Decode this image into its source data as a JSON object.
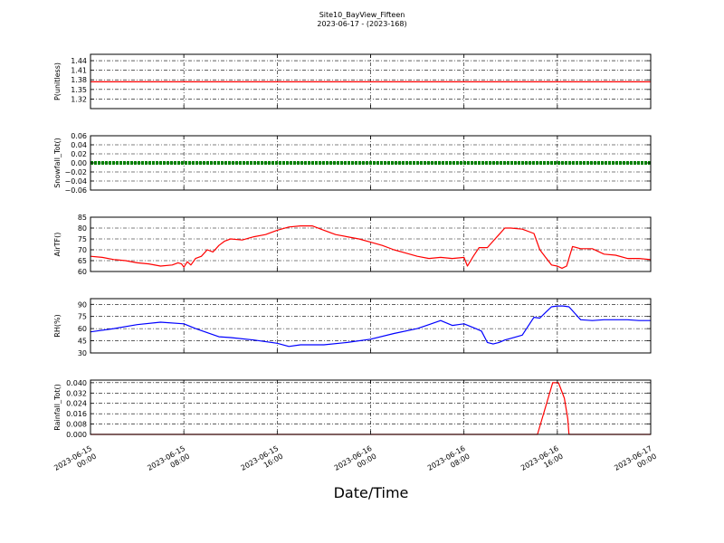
{
  "title_line1": "Site10_BayView_Fifteen",
  "title_line2": "2023-06-17 - (2023-168)",
  "xlabel": "Date/Time",
  "chart_data": {
    "type": "line",
    "title": "Site10_BayView_Fifteen",
    "subtitle": "2023-06-17 - (2023-168)",
    "xlabel": "Date/Time",
    "x_axis": {
      "start": "2023-06-15 00:00",
      "end": "2023-06-17 00:00",
      "tick_hours": [
        0,
        8,
        16,
        24,
        32,
        40,
        48
      ],
      "tick_labels": [
        [
          "2023-06-15",
          "00:00"
        ],
        [
          "2023-06-15",
          "08:00"
        ],
        [
          "2023-06-15",
          "16:00"
        ],
        [
          "2023-06-16",
          "00:00"
        ],
        [
          "2023-06-16",
          "08:00"
        ],
        [
          "2023-06-16",
          "16:00"
        ],
        [
          "2023-06-17",
          "00:00"
        ]
      ]
    },
    "grid": true,
    "panels": [
      {
        "ylabel": "P(unitless)",
        "color": "#ff0000",
        "ylim": [
          1.29,
          1.46
        ],
        "yticks": [
          1.32,
          1.35,
          1.38,
          1.41,
          1.44
        ],
        "ytick_labels": [
          "1.32",
          "1.35",
          "1.38",
          "1.41",
          "1.44"
        ],
        "style": "line",
        "x_hours": [
          0,
          48
        ],
        "values": [
          1.374,
          1.374
        ]
      },
      {
        "ylabel": "Snowfall_Tot()",
        "color": "#008000",
        "ylim": [
          -0.06,
          0.06
        ],
        "yticks": [
          -0.06,
          -0.04,
          -0.02,
          0.0,
          0.02,
          0.04,
          0.06
        ],
        "ytick_labels": [
          "−0.06",
          "−0.04",
          "−0.02",
          "0.00",
          "0.02",
          "0.04",
          "0.06"
        ],
        "style": "markers",
        "x_hours": [
          0,
          48
        ],
        "values": [
          0.0,
          0.0
        ]
      },
      {
        "ylabel": "AirTF()",
        "color": "#ff0000",
        "ylim": [
          60,
          85
        ],
        "yticks": [
          60,
          65,
          70,
          75,
          80,
          85
        ],
        "ytick_labels": [
          "60",
          "65",
          "70",
          "75",
          "80",
          "85"
        ],
        "style": "line",
        "x_hours": [
          0,
          1,
          2,
          3,
          4,
          5,
          6,
          7,
          7.5,
          7.8,
          8,
          8.3,
          8.6,
          9,
          9.5,
          10,
          10.5,
          11,
          11.5,
          12,
          13,
          14,
          15,
          16,
          17,
          18,
          19,
          20,
          21,
          22,
          23,
          24,
          25,
          26,
          27,
          28,
          29,
          30,
          31,
          32,
          32.3,
          32.8,
          33.3,
          34,
          34.5,
          35,
          35.5,
          36,
          37,
          38,
          38.5,
          39,
          39.5,
          40,
          40.4,
          40.8,
          41.3,
          42,
          43,
          44,
          45,
          46,
          47,
          48
        ],
        "values": [
          67,
          66.5,
          65.5,
          65,
          64,
          63.5,
          62.5,
          63,
          64,
          63.5,
          62,
          64.5,
          63,
          66,
          67,
          70,
          69,
          72,
          74,
          75,
          74.5,
          76,
          77,
          79,
          80.5,
          81,
          81,
          79,
          77,
          76,
          75,
          73.5,
          72,
          70,
          68.5,
          67,
          66,
          66.5,
          66,
          66.5,
          62.5,
          67,
          71,
          71,
          74,
          77,
          80,
          80,
          79.5,
          77.5,
          70,
          66.5,
          63,
          62.5,
          61.5,
          62.5,
          71.5,
          70.5,
          70.5,
          68,
          67.5,
          66,
          66,
          65.5
        ]
      },
      {
        "ylabel": "RH(%)",
        "color": "#0000ff",
        "ylim": [
          30,
          97
        ],
        "yticks": [
          30,
          45,
          60,
          75,
          90
        ],
        "ytick_labels": [
          "30",
          "45",
          "60",
          "75",
          "90"
        ],
        "style": "line",
        "x_hours": [
          0,
          2,
          4,
          6,
          8,
          9,
          10,
          11,
          12,
          14,
          16,
          17,
          18,
          20,
          22,
          24,
          26,
          28,
          29,
          30,
          31,
          32,
          33,
          33.5,
          34,
          34.5,
          35,
          35.5,
          36,
          37,
          38,
          38.5,
          39,
          39.5,
          40,
          40.5,
          41,
          42,
          43,
          44,
          45,
          46,
          47,
          48
        ],
        "values": [
          56,
          60,
          65,
          68,
          66,
          60,
          55,
          50,
          49,
          46,
          42,
          38,
          40,
          40,
          43,
          47,
          54,
          60,
          65,
          70,
          64,
          66,
          60,
          57,
          43,
          41,
          43,
          46,
          48,
          52,
          74,
          73,
          80,
          87,
          88,
          88,
          87,
          71,
          70,
          71,
          71,
          71,
          70,
          70
        ]
      },
      {
        "ylabel": "Rainfall_Tot()",
        "color": "#ff0000",
        "ylim": [
          0,
          0.042
        ],
        "yticks": [
          0.0,
          0.008,
          0.016,
          0.024,
          0.032,
          0.04
        ],
        "ytick_labels": [
          "0.000",
          "0.008",
          "0.016",
          "0.024",
          "0.032",
          "0.040"
        ],
        "style": "line",
        "x_hours": [
          0,
          38.3,
          39.6,
          40.1,
          40.6,
          40.9,
          41,
          48
        ],
        "values": [
          0,
          0,
          0.04,
          0.04,
          0.028,
          0.012,
          0,
          0
        ]
      }
    ]
  }
}
